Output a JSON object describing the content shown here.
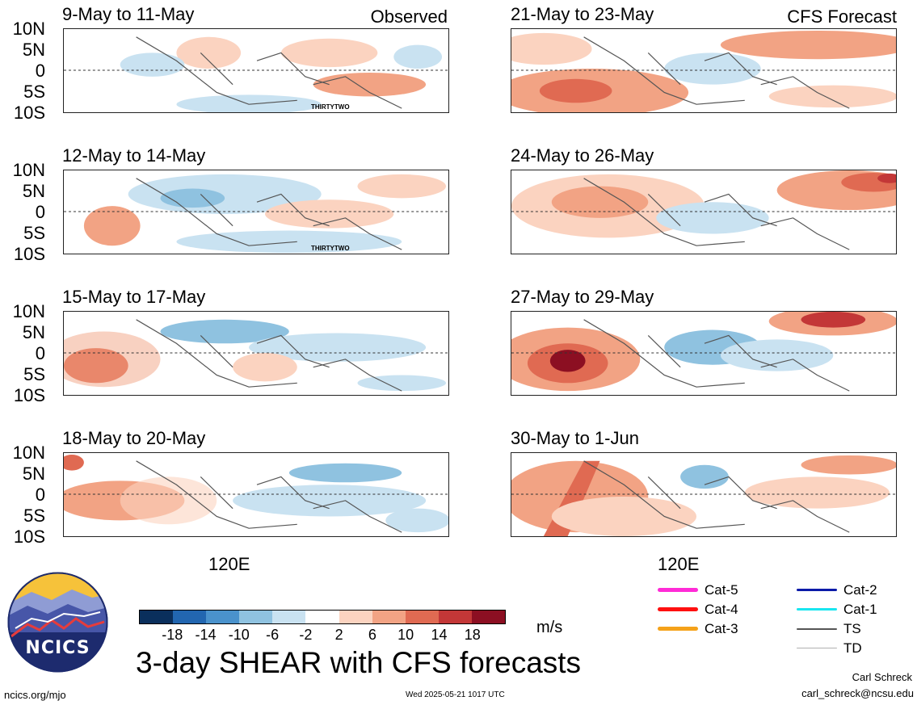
{
  "panels": [
    {
      "title": "9-May to 11-May",
      "tag": "Observed",
      "storm": "THIRTYTWO"
    },
    {
      "title": "12-May to 14-May",
      "tag": "",
      "storm": "THIRTYTWO"
    },
    {
      "title": "15-May to 17-May",
      "tag": "",
      "storm": ""
    },
    {
      "title": "18-May to 20-May",
      "tag": "",
      "storm": ""
    },
    {
      "title": "21-May to 23-May",
      "tag": "CFS Forecast",
      "storm": ""
    },
    {
      "title": "24-May to 26-May",
      "tag": "",
      "storm": ""
    },
    {
      "title": "27-May to 29-May",
      "tag": "",
      "storm": ""
    },
    {
      "title": "30-May to 1-Jun",
      "tag": "",
      "storm": ""
    }
  ],
  "lat_labels": [
    "10N",
    "5N",
    "0",
    "5S",
    "10S"
  ],
  "lon_label": "120E",
  "colorbar": {
    "colors": [
      "#0a2f5c",
      "#2266b0",
      "#4a92cc",
      "#8fc2e0",
      "#c9e2f1",
      "#ffffff",
      "#fbd3c0",
      "#f2a384",
      "#e06a52",
      "#c33737",
      "#8c0f22"
    ],
    "ticks": [
      "-18",
      "-14",
      "-10",
      "-6",
      "-2",
      "2",
      "6",
      "10",
      "14",
      "18"
    ],
    "units": "m/s"
  },
  "title": "3-day SHEAR with CFS forecasts",
  "legend": [
    {
      "label": "Cat-5",
      "color": "#ff2bd6"
    },
    {
      "label": "Cat-4",
      "color": "#ff1010"
    },
    {
      "label": "Cat-3",
      "color": "#f5a21a"
    },
    {
      "label": "Cat-2",
      "color": "#0a1aa8"
    },
    {
      "label": "Cat-1",
      "color": "#19e6f0"
    },
    {
      "label": "TS",
      "color": "#555555"
    },
    {
      "label": "TD",
      "color": "#b0b0b0"
    }
  ],
  "logo_text": "NCICS",
  "footer": {
    "website": "ncics.org/mjo",
    "timestamp": "Wed 2025-05-21 1017 UTC",
    "author": "Carl Schreck",
    "email": "carl_schreck@ncsu.edu"
  }
}
